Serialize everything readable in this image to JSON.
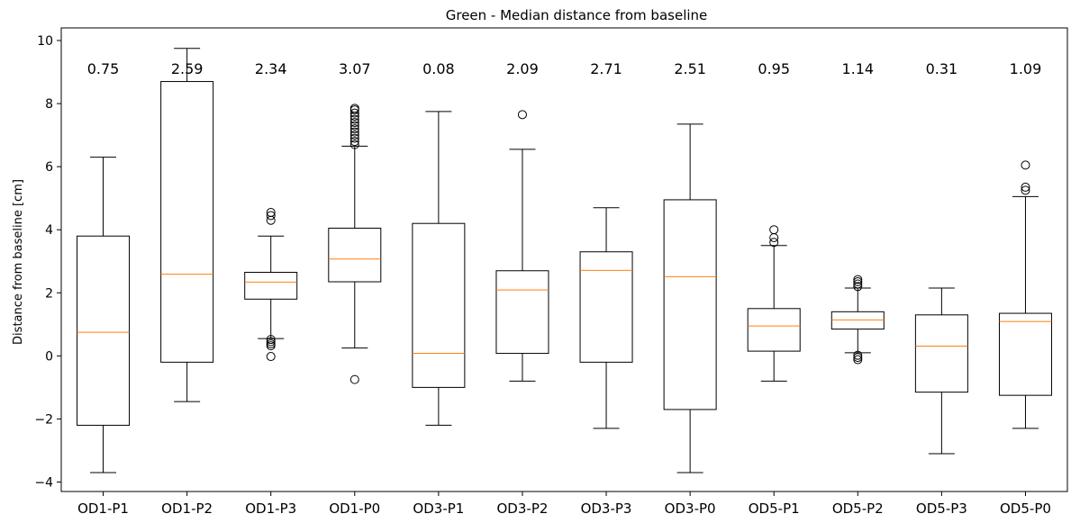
{
  "chart_data": {
    "type": "box",
    "title": "Green - Median distance from baseline",
    "xlabel": "",
    "ylabel": "Distance from baseline [cm]",
    "ylim": [
      -4.3,
      10.4
    ],
    "yticks": [
      -4,
      -2,
      0,
      2,
      4,
      6,
      8,
      10
    ],
    "categories": [
      "OD1-P1",
      "OD1-P2",
      "OD1-P3",
      "OD1-P0",
      "OD3-P1",
      "OD3-P2",
      "OD3-P3",
      "OD3-P0",
      "OD5-P1",
      "OD5-P2",
      "OD5-P3",
      "OD5-P0"
    ],
    "median_labels": [
      "0.75",
      "2.59",
      "2.34",
      "3.07",
      "0.08",
      "2.09",
      "2.71",
      "2.51",
      "0.95",
      "1.14",
      "0.31",
      "1.09"
    ],
    "boxes": [
      {
        "whisker_low": -3.7,
        "q1": -2.2,
        "median": 0.75,
        "q3": 3.8,
        "whisker_high": 6.3,
        "outliers": []
      },
      {
        "whisker_low": -1.45,
        "q1": -0.2,
        "median": 2.59,
        "q3": 8.7,
        "whisker_high": 9.75,
        "outliers": []
      },
      {
        "whisker_low": 0.55,
        "q1": 1.8,
        "median": 2.34,
        "q3": 2.65,
        "whisker_high": 3.8,
        "outliers": [
          -0.02,
          0.32,
          0.38,
          0.45,
          0.52,
          4.3,
          4.45,
          4.55
        ]
      },
      {
        "whisker_low": 0.25,
        "q1": 2.35,
        "median": 3.07,
        "q3": 4.05,
        "whisker_high": 6.65,
        "outliers": [
          -0.75,
          6.7,
          6.8,
          6.9,
          7.0,
          7.1,
          7.2,
          7.3,
          7.4,
          7.5,
          7.6,
          7.7,
          7.8,
          7.85
        ]
      },
      {
        "whisker_low": -2.2,
        "q1": -1.0,
        "median": 0.08,
        "q3": 4.2,
        "whisker_high": 7.75,
        "outliers": []
      },
      {
        "whisker_low": -0.8,
        "q1": 0.08,
        "median": 2.09,
        "q3": 2.7,
        "whisker_high": 6.55,
        "outliers": [
          7.65
        ]
      },
      {
        "whisker_low": -2.3,
        "q1": -0.2,
        "median": 2.71,
        "q3": 3.3,
        "whisker_high": 4.7,
        "outliers": []
      },
      {
        "whisker_low": -3.7,
        "q1": -1.7,
        "median": 2.51,
        "q3": 4.95,
        "whisker_high": 7.35,
        "outliers": []
      },
      {
        "whisker_low": -0.8,
        "q1": 0.15,
        "median": 0.95,
        "q3": 1.5,
        "whisker_high": 3.5,
        "outliers": [
          3.6,
          3.75,
          4.0
        ]
      },
      {
        "whisker_low": 0.1,
        "q1": 0.85,
        "median": 1.14,
        "q3": 1.4,
        "whisker_high": 2.15,
        "outliers": [
          -0.12,
          -0.05,
          0.02,
          2.2,
          2.28,
          2.35,
          2.42
        ]
      },
      {
        "whisker_low": -3.1,
        "q1": -1.15,
        "median": 0.31,
        "q3": 1.3,
        "whisker_high": 2.15,
        "outliers": []
      },
      {
        "whisker_low": -2.3,
        "q1": -1.25,
        "median": 1.09,
        "q3": 1.35,
        "whisker_high": 5.05,
        "outliers": [
          5.25,
          5.35,
          6.05
        ]
      }
    ],
    "grid": false,
    "legend": "none",
    "colors": {
      "box": "#000000",
      "median": "#ff7f0e",
      "outlier": "#000000"
    }
  }
}
